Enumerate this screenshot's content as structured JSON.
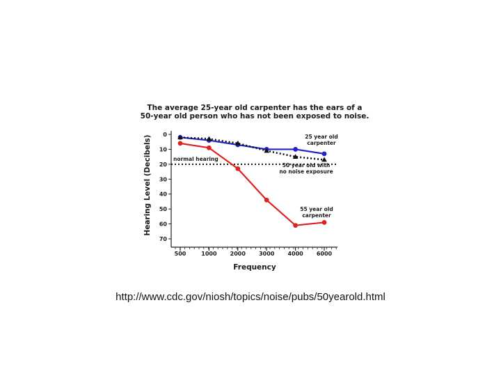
{
  "source_url": "http://www.cdc.gov/niosh/topics/noise/pubs/50yearold.html",
  "chart_data": {
    "type": "line",
    "title": [
      "The average 25-year old carpenter has the ears of a",
      "50-year old person who has not been exposed to noise."
    ],
    "xlabel": "Frequency",
    "ylabel": "Hearing Level (Decibels)",
    "categories": [
      "500",
      "1000",
      "2000",
      "3000",
      "4000",
      "6000"
    ],
    "y_ticks": [
      0,
      10,
      20,
      30,
      40,
      50,
      60,
      70
    ],
    "ylim": [
      0,
      70
    ],
    "y_inverted": true,
    "grid": false,
    "series": [
      {
        "name": "25 year old carpenter",
        "label": [
          "25 year old",
          "carpenter"
        ],
        "color": "#2222cc",
        "style": "solid",
        "marker": "circle",
        "values": [
          2,
          4,
          7,
          10,
          10,
          13
        ]
      },
      {
        "name": "50 year old with no noise exposure",
        "label": [
          "50 year old with",
          "no noise exposure"
        ],
        "color": "#111111",
        "style": "dotted",
        "marker": "triangle",
        "values": [
          2,
          3,
          6,
          11,
          15,
          17
        ]
      },
      {
        "name": "55 year old carpenter",
        "label": [
          "55 year old",
          "carpenter"
        ],
        "color": "#dd2222",
        "style": "solid",
        "marker": "circle",
        "values": [
          6,
          9,
          23,
          44,
          61,
          59
        ]
      }
    ],
    "reference_lines": [
      {
        "label": "normal hearing",
        "value": 20,
        "style": "dotted",
        "color": "#111111"
      }
    ]
  }
}
